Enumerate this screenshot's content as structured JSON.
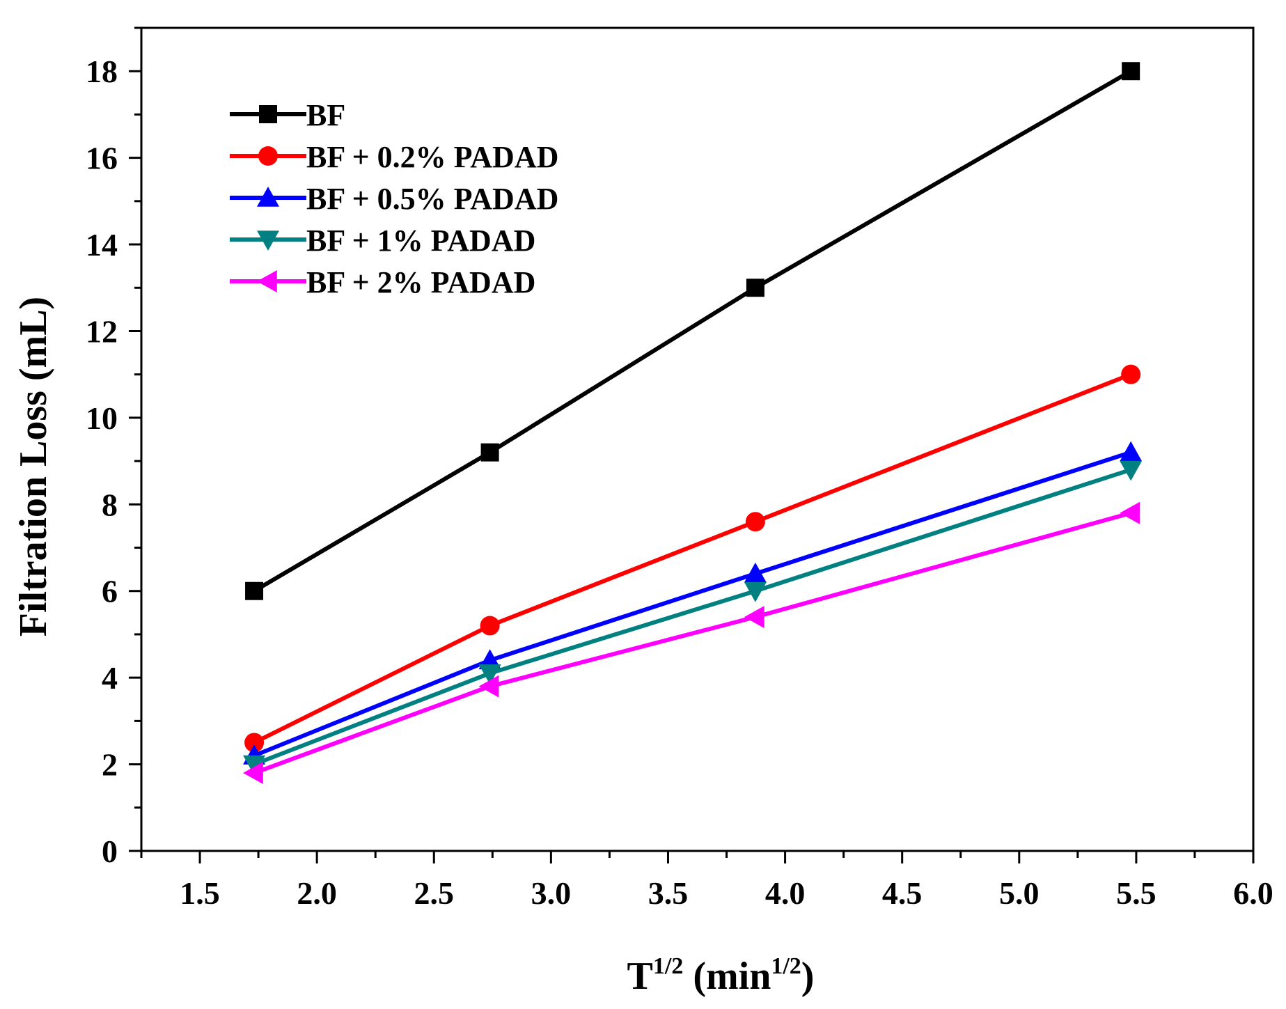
{
  "chart_data": {
    "type": "line",
    "title": "",
    "xlabel": {
      "base": "T",
      "base_sup": "1/2",
      "unit_open": " (min",
      "unit_sup": "1/2",
      "unit_close": ")"
    },
    "ylabel": "Filtration Loss (mL)",
    "xlim": [
      1.25,
      6.0
    ],
    "ylim": [
      0,
      19
    ],
    "x_ticks": [
      1.5,
      2.0,
      2.5,
      3.0,
      3.5,
      4.0,
      4.5,
      5.0,
      5.5,
      6.0
    ],
    "x_tick_labels": [
      "1.5",
      "2.0",
      "2.5",
      "3.0",
      "3.5",
      "4.0",
      "4.5",
      "5.0",
      "5.5",
      "6.0"
    ],
    "y_ticks": [
      0,
      2,
      4,
      6,
      8,
      10,
      12,
      14,
      16,
      18
    ],
    "y_tick_labels": [
      "0",
      "2",
      "4",
      "6",
      "8",
      "10",
      "12",
      "14",
      "16",
      "18"
    ],
    "grid": false,
    "legend_position": "top-left",
    "x": [
      1.732,
      2.739,
      3.873,
      5.477
    ],
    "series": [
      {
        "name": "BF",
        "color": "#000000",
        "marker": "square",
        "values": [
          6.0,
          9.2,
          13.0,
          18.0
        ]
      },
      {
        "name": "BF + 0.2% PADAD",
        "color": "#ff0000",
        "marker": "circle",
        "values": [
          2.5,
          5.2,
          7.6,
          11.0
        ]
      },
      {
        "name": "BF + 0.5% PADAD",
        "color": "#0000ff",
        "marker": "triangle-up",
        "values": [
          2.2,
          4.4,
          6.4,
          9.2
        ]
      },
      {
        "name": "BF + 1% PADAD",
        "color": "#008080",
        "marker": "triangle-down",
        "values": [
          2.0,
          4.1,
          6.0,
          8.8
        ]
      },
      {
        "name": "BF + 2% PADAD",
        "color": "#ff00ff",
        "marker": "triangle-left",
        "values": [
          1.8,
          3.8,
          5.4,
          7.8
        ]
      }
    ]
  }
}
